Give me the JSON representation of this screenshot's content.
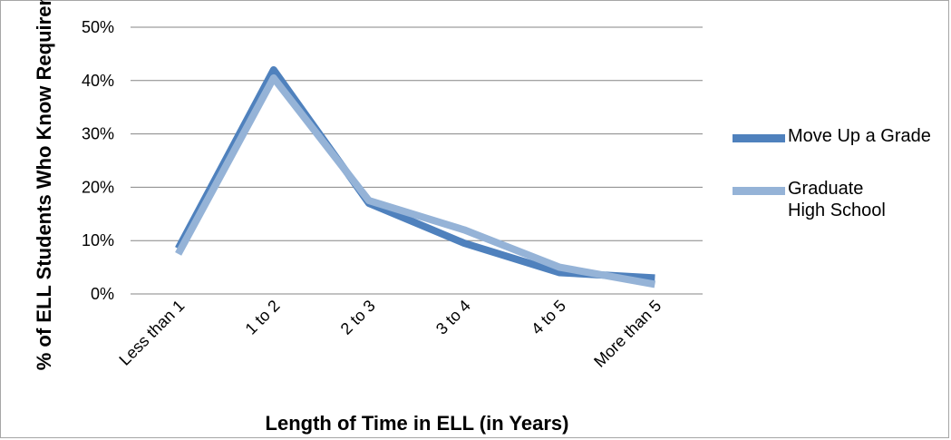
{
  "chart_data": {
    "type": "line",
    "title": "",
    "xlabel": "Length of Time in ELL (in Years)",
    "ylabel": "% of ELL Students Who Know Requirements",
    "ylim": [
      0,
      50
    ],
    "yticks": [
      0,
      10,
      20,
      30,
      40,
      50
    ],
    "ytick_labels": [
      "0%",
      "10%",
      "20%",
      "30%",
      "40%",
      "50%"
    ],
    "categories": [
      "Less than 1",
      "1 to 2",
      "2 to 3",
      "3 to 4",
      "4 to 5",
      "More than 5"
    ],
    "grid": true,
    "legend_position": "right",
    "series": [
      {
        "name": "Move Up a Grade",
        "color": "#4f81bd",
        "values": [
          8.5,
          42,
          17,
          9.5,
          4,
          3
        ]
      },
      {
        "name": "Graduate High School",
        "color": "#95b3d7",
        "values": [
          7.5,
          40.5,
          17.5,
          12,
          5,
          1.8
        ]
      }
    ]
  }
}
